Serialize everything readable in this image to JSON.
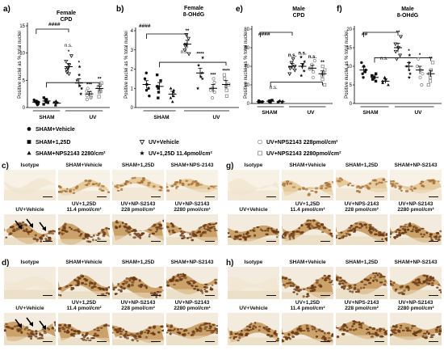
{
  "panels": {
    "a": {
      "letter": "a)",
      "title_lines": [
        "Female",
        "CPD"
      ],
      "ylabel": "Positive nuclei as % total nuclei",
      "yticks": [
        "0",
        "5",
        "10",
        "15"
      ],
      "groups": [
        "SHAM",
        "UV"
      ],
      "sig": [
        "####",
        "n.s."
      ],
      "stars": [
        "*",
        "*",
        "***",
        "**"
      ]
    },
    "b": {
      "letter": "b)",
      "title_lines": [
        "Female",
        "8-OHdG"
      ],
      "ylabel": "Positive nuclei as % total nuclei",
      "yticks": [
        "0",
        "1",
        "2",
        "3",
        "4"
      ],
      "groups": [
        "SHAM",
        "UV"
      ],
      "sig": [
        "####",
        "n.s."
      ],
      "stars": [
        "**",
        "****",
        "***",
        "****"
      ]
    },
    "e": {
      "letter": "e)",
      "title_lines": [
        "Male",
        "CPD"
      ],
      "ylabel": "Positive nuclei as % total nuclei",
      "yticks": [
        "0",
        "20",
        "40",
        "60",
        "80"
      ],
      "groups": [
        "SHAM",
        "UV"
      ],
      "sig": [
        "####",
        "n.s."
      ],
      "stars": [
        "n.s.",
        "n.s.",
        "n.s.",
        "**"
      ]
    },
    "f": {
      "letter": "f)",
      "title_lines": [
        "Male",
        "8-OHdG"
      ],
      "ylabel": "Positive nuclei as % total nuclei",
      "yticks": [
        "0",
        "5",
        "10",
        "15",
        "20"
      ],
      "groups": [
        "SHAM",
        "UV"
      ],
      "sig": [
        "##",
        "n.s."
      ],
      "stars": [
        "**",
        "*",
        "*",
        "**"
      ]
    }
  },
  "legend": [
    {
      "label": "SHAM+Vehicle",
      "marker": "circle-filled"
    },
    {
      "label": "SHAM+1,25D",
      "marker": "square-filled"
    },
    {
      "label": "UV+Vehicle",
      "marker": "triangle-down-open"
    },
    {
      "label": "UV+NPS2143 228pmol/cm²",
      "marker": "circle-open"
    },
    {
      "label": "SHAM+NPS2143 2280/cm²",
      "marker": "triangle-filled"
    },
    {
      "label": "UV+1,25D 11.4pmol/cm²",
      "marker": "star"
    },
    {
      "label": "UV+NPS2143 2280pmol/cm²",
      "marker": "square-open"
    }
  ],
  "chart_data": [
    {
      "panel": "a",
      "type": "scatter",
      "title": "Female CPD",
      "ylabel": "Positive nuclei as % total nuclei",
      "ylim": [
        0,
        15
      ],
      "categories": [
        "SHAM+Vehicle",
        "SHAM+1,25D",
        "SHAM+NPS2143 2280/cm²",
        "UV+Vehicle",
        "UV+1,25D 11.4pmol/cm²",
        "UV+NPS2143 228pmol/cm²",
        "UV+NPS2143 2280pmol/cm²"
      ],
      "series": [
        {
          "name": "SHAM+Vehicle",
          "mean": 1.0,
          "sem": 0.3,
          "values": [
            0.5,
            0.8,
            1.0,
            1.2,
            1.4,
            0.7,
            1.1
          ]
        },
        {
          "name": "SHAM+1,25D",
          "mean": 1.2,
          "sem": 0.3,
          "values": [
            0.6,
            1.0,
            1.5,
            1.8,
            0.9,
            1.3
          ]
        },
        {
          "name": "SHAM+NPS2143 2280/cm²",
          "mean": 0.8,
          "sem": 0.2,
          "values": [
            0.4,
            0.6,
            1.0,
            0.9,
            1.2
          ]
        },
        {
          "name": "UV+Vehicle",
          "mean": 7.5,
          "sem": 0.6,
          "values": [
            6.2,
            7.0,
            7.8,
            8.5,
            9.5,
            6.5,
            7.2
          ]
        },
        {
          "name": "UV+1,25D 11.4pmol/cm²",
          "mean": 4.5,
          "sem": 0.8,
          "values": [
            2.5,
            3.5,
            5.0,
            6.0,
            7.5,
            4.0
          ]
        },
        {
          "name": "UV+NPS2143 228pmol/cm²",
          "mean": 2.5,
          "sem": 0.4,
          "values": [
            1.5,
            2.0,
            2.8,
            3.0,
            3.5,
            2.2,
            1.8
          ]
        },
        {
          "name": "UV+NPS2143 2280pmol/cm²",
          "mean": 3.5,
          "sem": 0.4,
          "values": [
            2.0,
            3.0,
            3.8,
            4.2,
            4.5,
            3.2,
            2.8
          ]
        }
      ]
    },
    {
      "panel": "b",
      "type": "scatter",
      "title": "Female 8-OHdG",
      "ylabel": "Positive nuclei as % total nuclei",
      "ylim": [
        0,
        4
      ],
      "categories": [
        "SHAM+Vehicle",
        "SHAM+1,25D",
        "SHAM+NPS2143 2280/cm²",
        "UV+Vehicle",
        "UV+1,25D 11.4pmol/cm²",
        "UV+NPS2143 228pmol/cm²",
        "UV+NPS2143 2280pmol/cm²"
      ],
      "series": [
        {
          "name": "SHAM+Vehicle",
          "mean": 1.2,
          "sem": 0.2,
          "values": [
            0.6,
            0.9,
            1.2,
            1.5,
            1.8,
            1.0
          ]
        },
        {
          "name": "SHAM+1,25D",
          "mean": 1.1,
          "sem": 0.2,
          "values": [
            0.5,
            0.8,
            1.1,
            1.4,
            1.7,
            1.0
          ]
        },
        {
          "name": "SHAM+NPS2143 2280/cm²",
          "mean": 0.7,
          "sem": 0.15,
          "values": [
            0.3,
            0.5,
            0.8,
            1.0,
            0.6,
            0.9
          ]
        },
        {
          "name": "UV+Vehicle",
          "mean": 3.3,
          "sem": 0.2,
          "values": [
            2.8,
            3.0,
            3.3,
            3.6,
            3.8,
            3.2
          ]
        },
        {
          "name": "UV+1,25D 11.4pmol/cm²",
          "mean": 1.8,
          "sem": 0.25,
          "values": [
            1.0,
            1.5,
            1.8,
            2.2,
            2.6,
            1.6
          ]
        },
        {
          "name": "UV+NPS2143 228pmol/cm²",
          "mean": 1.0,
          "sem": 0.2,
          "values": [
            0.5,
            0.8,
            1.0,
            1.3,
            1.5,
            0.9
          ]
        },
        {
          "name": "UV+NPS2143 2280pmol/cm²",
          "mean": 1.2,
          "sem": 0.2,
          "values": [
            0.6,
            0.9,
            1.2,
            1.5,
            1.7,
            1.1
          ]
        }
      ]
    },
    {
      "panel": "e",
      "type": "scatter",
      "title": "Male CPD",
      "ylabel": "Positive nuclei as % total nuclei",
      "ylim": [
        0,
        80
      ],
      "categories": [
        "SHAM+Vehicle",
        "SHAM+1,25D",
        "SHAM+NPS2143 2280/cm²",
        "UV+Vehicle",
        "UV+1,25D 11.4pmol/cm²",
        "UV+NPS2143 228pmol/cm²",
        "UV+NPS2143 2280pmol/cm²"
      ],
      "series": [
        {
          "name": "SHAM+Vehicle",
          "mean": 2,
          "sem": 0.5,
          "values": [
            1,
            2,
            3,
            2,
            1.5
          ]
        },
        {
          "name": "SHAM+1,25D",
          "mean": 2.5,
          "sem": 0.6,
          "values": [
            1,
            2.5,
            3.5,
            2,
            3
          ]
        },
        {
          "name": "SHAM+NPS2143 2280/cm²",
          "mean": 2,
          "sem": 0.5,
          "values": [
            1,
            2,
            3,
            2.5,
            1.5
          ]
        },
        {
          "name": "UV+Vehicle",
          "mean": 40,
          "sem": 3,
          "values": [
            32,
            36,
            40,
            44,
            48,
            38
          ]
        },
        {
          "name": "UV+1,25D 11.4pmol/cm²",
          "mean": 40,
          "sem": 3,
          "values": [
            30,
            35,
            40,
            45,
            50,
            42
          ]
        },
        {
          "name": "UV+NPS2143 228pmol/cm²",
          "mean": 38,
          "sem": 3,
          "values": [
            28,
            34,
            38,
            42,
            46,
            37
          ]
        },
        {
          "name": "UV+NPS2143 2280pmol/cm²",
          "mean": 32,
          "sem": 3,
          "values": [
            20,
            26,
            32,
            36,
            40,
            30
          ]
        }
      ]
    },
    {
      "panel": "f",
      "type": "scatter",
      "title": "Male 8-OHdG",
      "ylabel": "Positive nuclei as % total nuclei",
      "ylim": [
        0,
        20
      ],
      "categories": [
        "SHAM+Vehicle",
        "SHAM+1,25D",
        "SHAM+NPS2143 2280/cm²",
        "UV+Vehicle",
        "UV+1,25D 11.4pmol/cm²",
        "UV+NPS2143 228pmol/cm²",
        "UV+NPS2143 2280pmol/cm²"
      ],
      "series": [
        {
          "name": "SHAM+Vehicle",
          "mean": 9,
          "sem": 0.8,
          "values": [
            7,
            8,
            9,
            10,
            11,
            8.5
          ]
        },
        {
          "name": "SHAM+1,25D",
          "mean": 7,
          "sem": 0.6,
          "values": [
            6,
            6.5,
            7,
            7.5,
            8
          ]
        },
        {
          "name": "SHAM+NPS2143 2280/cm²",
          "mean": 6,
          "sem": 0.6,
          "values": [
            5,
            5.5,
            6,
            6.5,
            7
          ]
        },
        {
          "name": "UV+Vehicle",
          "mean": 15,
          "sem": 1.2,
          "values": [
            12,
            13,
            15,
            16,
            18,
            14
          ]
        },
        {
          "name": "UV+1,25D 11.4pmol/cm²",
          "mean": 10,
          "sem": 1.0,
          "values": [
            7,
            8,
            10,
            11,
            13,
            9
          ]
        },
        {
          "name": "UV+NPS2143 228pmol/cm²",
          "mean": 9,
          "sem": 1.0,
          "values": [
            5,
            7,
            9,
            10,
            12,
            8
          ]
        },
        {
          "name": "UV+NPS2143 2280pmol/cm²",
          "mean": 8,
          "sem": 0.9,
          "values": [
            5,
            6,
            8,
            9,
            11,
            7
          ]
        }
      ]
    }
  ],
  "micrographs": {
    "c": {
      "letter": "c)",
      "top": [
        "Isotype",
        "SHAM+Vehicle",
        "SHAM+1,25D",
        "SHAM+NPS-2143"
      ],
      "bottom": [
        "UV+Vehicle",
        "UV+1,25D\n11.4 pmol/cm²",
        "UV+NP-S2143\n228 pmol/cm²",
        "UV+NP-S2143\n2280 pmol/cm²"
      ]
    },
    "d": {
      "letter": "d)",
      "top": [
        "Isotype",
        "SHAM+Vehicle",
        "SHAM+1,25D",
        "SHAM+NP-S2143"
      ],
      "bottom": [
        "UV+Vehicle",
        "UV+1,25D\n11.4 pmol/cm²",
        "UV+NP-S2143\n228 pmol/cm²",
        "UV+NP-S2143\n2280 pmol/cm²"
      ]
    },
    "g": {
      "letter": "g)",
      "top": [
        "Isotype",
        "SHAM+Vehicle",
        "SHAM+1,25D",
        "SHAM+NP-S2143"
      ],
      "bottom": [
        "UV+Vehicle",
        "UV+1,25D\n11.4 pmol/cm²",
        "UV+NPS-2143\n228 pmol/cm²",
        "UV+NP-S2143\n2280 pmol/cm²"
      ]
    },
    "h": {
      "letter": "h)",
      "top": [
        "Isotype",
        "SHAM+Vehicle",
        "SHAM+1,25D",
        "SHAM+NP-S2143"
      ],
      "bottom": [
        "UV+Vehicle",
        "UV+1,25D\n11.4 pmol/cm²",
        "UV+NPS-2143\n228 pmol/cm²",
        "UV+NP-S2143\n2280 pmol/cm²"
      ]
    }
  },
  "colors": {
    "bg": "#ffffff",
    "ink": "#111111",
    "open_marker": "#888888",
    "tissue_light": "#efe2c4",
    "tissue_dark": "#b07a3c",
    "nuclei": "#6b3a14"
  }
}
